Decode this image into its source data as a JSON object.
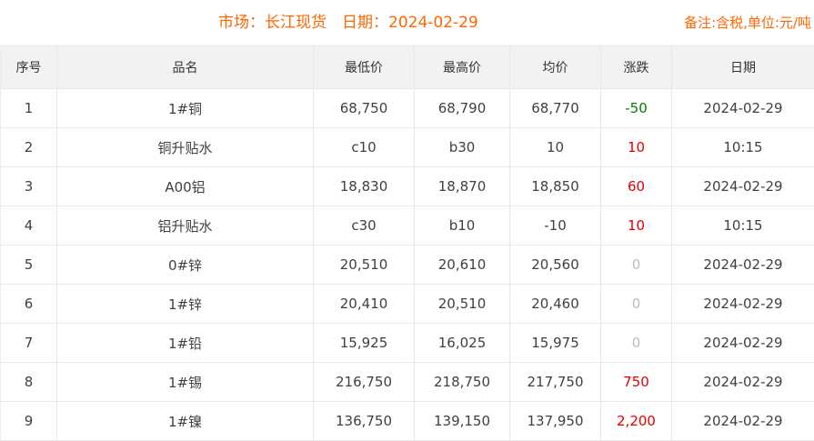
{
  "colors": {
    "accent_orange": "#ff6600",
    "change_up_red": "#e60000",
    "change_down_green": "#008000",
    "change_flat_gray": "#bbbbbb",
    "header_row_bg": "#f2f2f2",
    "border": "#e8e8e8",
    "body_text": "#404040"
  },
  "header": {
    "market_title": "市场：长江现货　日期：2024-02-29",
    "note": "备注:含税,单位:元/吨"
  },
  "table": {
    "columns": [
      "序号",
      "品名",
      "最低价",
      "最高价",
      "均价",
      "涨跌",
      "日期"
    ],
    "rows": [
      {
        "no": "1",
        "name": "1#铜",
        "low": "68,750",
        "high": "68,790",
        "avg": "68,770",
        "change": "-50",
        "dir": "down",
        "date": "2024-02-29"
      },
      {
        "no": "2",
        "name": "铜升贴水",
        "low": "c10",
        "high": "b30",
        "avg": "10",
        "change": "10",
        "dir": "up",
        "date": "10:15"
      },
      {
        "no": "3",
        "name": "A00铝",
        "low": "18,830",
        "high": "18,870",
        "avg": "18,850",
        "change": "60",
        "dir": "up",
        "date": "2024-02-29"
      },
      {
        "no": "4",
        "name": "铝升贴水",
        "low": "c30",
        "high": "b10",
        "avg": "-10",
        "change": "10",
        "dir": "up",
        "date": "10:15"
      },
      {
        "no": "5",
        "name": "0#锌",
        "low": "20,510",
        "high": "20,610",
        "avg": "20,560",
        "change": "0",
        "dir": "flat",
        "date": "2024-02-29"
      },
      {
        "no": "6",
        "name": "1#锌",
        "low": "20,410",
        "high": "20,510",
        "avg": "20,460",
        "change": "0",
        "dir": "flat",
        "date": "2024-02-29"
      },
      {
        "no": "7",
        "name": "1#铅",
        "low": "15,925",
        "high": "16,025",
        "avg": "15,975",
        "change": "0",
        "dir": "flat",
        "date": "2024-02-29"
      },
      {
        "no": "8",
        "name": "1#锡",
        "low": "216,750",
        "high": "218,750",
        "avg": "217,750",
        "change": "750",
        "dir": "up",
        "date": "2024-02-29"
      },
      {
        "no": "9",
        "name": "1#镍",
        "low": "136,750",
        "high": "139,150",
        "avg": "137,950",
        "change": "2,200",
        "dir": "up",
        "date": "2024-02-29"
      }
    ]
  }
}
